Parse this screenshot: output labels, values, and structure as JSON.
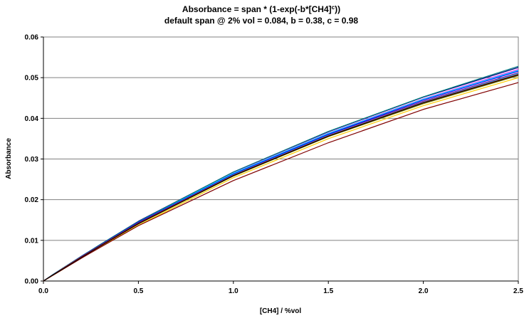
{
  "chart_data": {
    "type": "line",
    "title_line1_pre": "Absorbance = span * (1-exp(-b*[CH4]",
    "title_line1_sup": "c",
    "title_line1_post": "))",
    "title_line2": "default span @ 2% vol = 0.084, b = 0.38, c = 0.98",
    "xlabel": "[CH4] / %vol",
    "ylabel": "Absorbance",
    "xlim": [
      0,
      2.5
    ],
    "ylim": [
      0,
      0.06
    ],
    "x_ticks": [
      "0.0",
      "0.5",
      "1.0",
      "1.5",
      "2.0",
      "2.5"
    ],
    "y_ticks": [
      "0.00",
      "0.01",
      "0.02",
      "0.03",
      "0.04",
      "0.05",
      "0.06"
    ],
    "grid": "horizontal",
    "legend": "none",
    "x": [
      0,
      0.05,
      0.1,
      0.2,
      0.3,
      0.5,
      1.0,
      1.5,
      2.0,
      2.5
    ],
    "series": [
      {
        "color": "#000080",
        "values": [
          0,
          0.0016,
          0.0031,
          0.0061,
          0.009,
          0.0147,
          0.0268,
          0.0367,
          0.0452,
          0.0525
        ]
      },
      {
        "color": "#ff00ff",
        "values": [
          0,
          0.0016,
          0.0031,
          0.006,
          0.0089,
          0.0146,
          0.0266,
          0.0364,
          0.0448,
          0.052
        ]
      },
      {
        "color": "#00ffff",
        "values": [
          0,
          0.0016,
          0.0031,
          0.006,
          0.0089,
          0.0145,
          0.0265,
          0.0363,
          0.0447,
          0.0518
        ]
      },
      {
        "color": "#008080",
        "values": [
          0,
          0.0016,
          0.0031,
          0.0061,
          0.009,
          0.0146,
          0.0268,
          0.0368,
          0.0453,
          0.0528
        ]
      },
      {
        "color": "#800080",
        "values": [
          0,
          0.0015,
          0.003,
          0.0059,
          0.0088,
          0.0143,
          0.0262,
          0.036,
          0.0442,
          0.0512
        ]
      },
      {
        "color": "#0000ff",
        "values": [
          0,
          0.0015,
          0.003,
          0.006,
          0.0088,
          0.0144,
          0.0263,
          0.0361,
          0.0445,
          0.0516
        ]
      },
      {
        "color": "#00ccff",
        "values": [
          0,
          0.0015,
          0.003,
          0.0059,
          0.0087,
          0.0142,
          0.0261,
          0.0358,
          0.044,
          0.051
        ]
      },
      {
        "color": "#808000",
        "values": [
          0,
          0.0015,
          0.0029,
          0.0058,
          0.0086,
          0.014,
          0.0258,
          0.0355,
          0.0436,
          0.0505
        ]
      },
      {
        "color": "#ffcc00",
        "values": [
          0,
          0.0014,
          0.0028,
          0.0057,
          0.0084,
          0.0137,
          0.0254,
          0.035,
          0.0431,
          0.05
        ]
      },
      {
        "color": "#ff0000",
        "values": [
          0,
          0.0015,
          0.003,
          0.0059,
          0.0087,
          0.0142,
          0.026,
          0.0357,
          0.0439,
          0.0508
        ]
      },
      {
        "color": "#800000",
        "values": [
          0,
          0.0014,
          0.0028,
          0.0056,
          0.0083,
          0.0136,
          0.0247,
          0.034,
          0.0422,
          0.0488
        ]
      },
      {
        "color": "#000000",
        "values": [
          0,
          0.0015,
          0.0029,
          0.0058,
          0.0086,
          0.0141,
          0.0259,
          0.0356,
          0.0438,
          0.0507
        ]
      }
    ]
  }
}
